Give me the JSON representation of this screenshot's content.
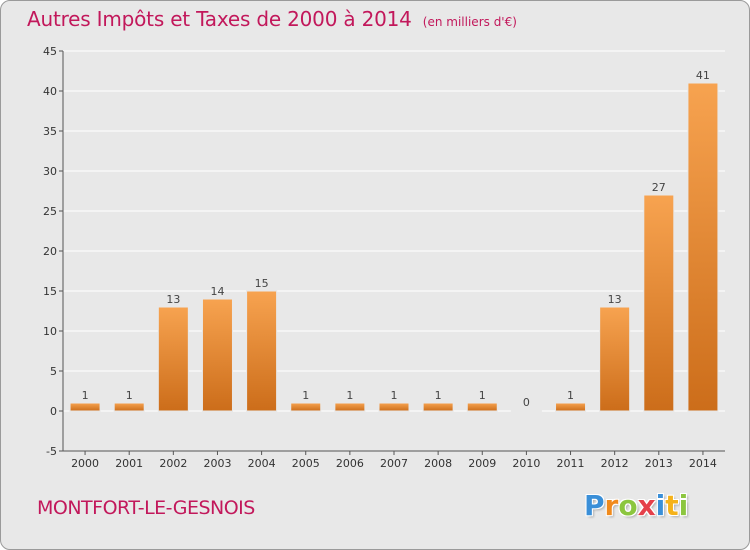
{
  "header": {
    "title": "Autres Impôts et Taxes de 2000 à 2014",
    "subtitle": "(en milliers d'€)"
  },
  "footer": {
    "commune": "MONTFORT-LE-GESNOIS",
    "logo_text": "Proxiti",
    "logo_letters": [
      {
        "char": "P",
        "color": "#3a8fd8"
      },
      {
        "char": "r",
        "color": "#f08a1c"
      },
      {
        "char": "o",
        "color": "#8cc63f"
      },
      {
        "char": "x",
        "color": "#e5404a"
      },
      {
        "char": "i",
        "color": "#3a8fd8"
      },
      {
        "char": "t",
        "color": "#f5b21a"
      },
      {
        "char": "i",
        "color": "#8cc63f"
      }
    ]
  },
  "colors": {
    "bar_light": "#f7a350",
    "bar_dark": "#cc6d1a",
    "grid": "#ffffff",
    "axis": "#555555",
    "title": "#c2185b"
  },
  "chart_data": {
    "type": "bar",
    "title": "Autres Impôts et Taxes de 2000 à 2014",
    "subtitle": "(en milliers d'€)",
    "categories": [
      "2000",
      "2001",
      "2002",
      "2003",
      "2004",
      "2005",
      "2006",
      "2007",
      "2008",
      "2009",
      "2010",
      "2011",
      "2012",
      "2013",
      "2014"
    ],
    "values": [
      1,
      1,
      13,
      14,
      15,
      1,
      1,
      1,
      1,
      1,
      0,
      1,
      13,
      27,
      41
    ],
    "data_labels": [
      "1",
      "1",
      "13",
      "14",
      "15",
      "1",
      "1",
      "1",
      "1",
      "1",
      "0",
      "1",
      "13",
      "27",
      "41"
    ],
    "ylim": [
      -5,
      45
    ],
    "yticks": [
      -5,
      0,
      5,
      10,
      15,
      20,
      25,
      30,
      35,
      40,
      45
    ],
    "grid": true,
    "xlabel": "",
    "ylabel": ""
  }
}
